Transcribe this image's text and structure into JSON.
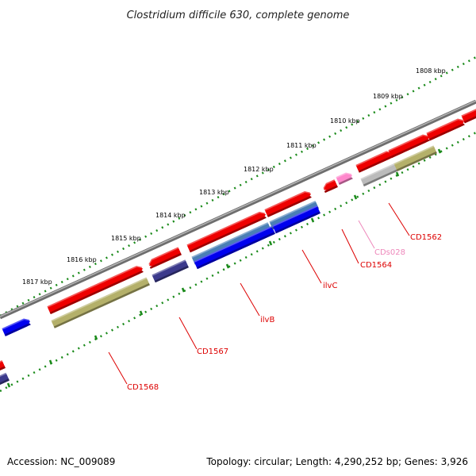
{
  "title": "Clostridium difficile 630, complete genome",
  "kbp_labels": [
    "1808 kbp",
    "1809 kbp",
    "1810 kbp",
    "1811 kbp",
    "1812 kbp",
    "1813 kbp",
    "1814 kbp",
    "1815 kbp",
    "1816 kbp",
    "1817 kbp"
  ],
  "gene_labels": [
    "CD1562",
    "CDs028",
    "CD1564",
    "ilvC",
    "ilvB",
    "CD1567",
    "CD1568"
  ],
  "footer": {
    "accession": "Accession: NC_009089",
    "summary": "Topology: circular; Length: 4,290,252 bp; Genes: 3,926"
  },
  "colors": {
    "cds_red": "#ee0000",
    "cds_blue": "#0000ee",
    "steel_blue": "#4a7fb5",
    "navy": "#3c3a8c",
    "olive": "#b4b06a",
    "gray_feature": "#bbbbbb",
    "pink": "#ff88cc",
    "backbone": "#888888",
    "ruler": "#1a8a1a",
    "label_red": "#dd0000",
    "label_pink": "#ee88bb"
  }
}
